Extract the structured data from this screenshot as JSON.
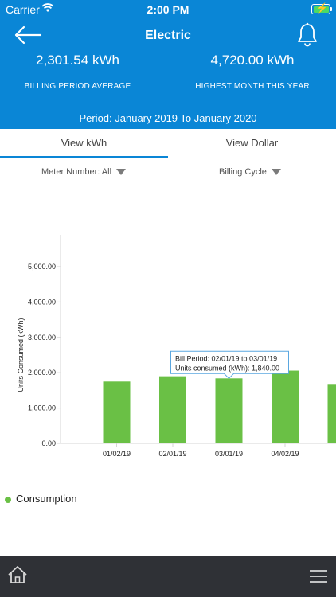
{
  "status_bar": {
    "carrier": "Carrier",
    "time": "2:00 PM"
  },
  "header": {
    "title": "Electric",
    "billing_average_value": "2,301.54 kWh",
    "billing_average_label": "BILLING PERIOD AVERAGE",
    "highest_month_value": "4,720.00 kWh",
    "highest_month_label": "HIGHEST MONTH THIS YEAR",
    "period": "Period: January 2019 To January 2020"
  },
  "tabs": [
    {
      "label": "View kWh",
      "active": true
    },
    {
      "label": "View Dollar",
      "active": false
    }
  ],
  "filters": {
    "meter": "Meter Number: All",
    "cycle": "Billing Cycle"
  },
  "chart_data": {
    "type": "bar",
    "ylabel": "Units Consumed (kWh)",
    "ylim": [
      0,
      5000
    ],
    "yticks": [
      "0.00",
      "1,000.00",
      "2,000.00",
      "3,000.00",
      "4,000.00",
      "5,000.00"
    ],
    "categories": [
      "01/02/19",
      "02/01/19",
      "03/01/19",
      "04/02/19",
      "05/"
    ],
    "values": [
      1750,
      1900,
      1840,
      2060,
      1660
    ],
    "bar_color": "#6ac045",
    "tooltip": {
      "line1": "Bill Period: 02/01/19 to 03/01/19",
      "line2": "Units consumed (kWh): 1,840.00"
    },
    "legend": "Consumption"
  },
  "colors": {
    "header": "#0a86d6",
    "footer": "#2f3136",
    "accent": "#0a86d6"
  },
  "icons": {
    "back": "back-arrow-icon",
    "notifications": "bell-icon",
    "home": "home-icon",
    "menu": "hamburger-menu-icon"
  }
}
